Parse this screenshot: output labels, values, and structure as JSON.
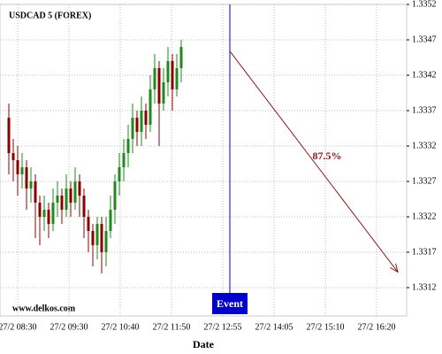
{
  "chart_data": {
    "type": "candlestick",
    "title": "USDCAD 5 (FOREX)",
    "watermark": "www.delkos.com",
    "xlabel": "Date",
    "xtick_labels": [
      "27/2 08:30",
      "27/2 09:30",
      "27/2 10:40",
      "27/2 11:50",
      "27/2 12:55",
      "27/2 14:05",
      "27/2 15:10",
      "27/2 16:20"
    ],
    "ylim": [
      1.3308,
      1.3352
    ],
    "yticks": [
      1.3312,
      1.3317,
      1.3322,
      1.3327,
      1.3332,
      1.3337,
      1.3342,
      1.3347,
      1.3352
    ],
    "grid": true,
    "up_color": "#1f8a1f",
    "down_color": "#8b0000",
    "open": [
      1.3336,
      1.3331,
      1.333,
      1.3328,
      1.3329,
      1.3326,
      1.3327,
      1.3324,
      1.3322,
      1.3323,
      1.3321,
      1.3324,
      1.3325,
      1.3323,
      1.3326,
      1.3324,
      1.3327,
      1.3325,
      1.3322,
      1.332,
      1.3318,
      1.3321,
      1.3317,
      1.332,
      1.3323,
      1.3327,
      1.3329,
      1.3331,
      1.3333,
      1.3336,
      1.3334,
      1.3337,
      1.3335,
      1.334,
      1.3343,
      1.3338,
      1.3341,
      1.3344,
      1.334,
      1.3343
    ],
    "high": [
      1.3338,
      1.3333,
      1.3332,
      1.3331,
      1.333,
      1.3329,
      1.3328,
      1.3325,
      1.3325,
      1.3324,
      1.3326,
      1.3327,
      1.3326,
      1.3328,
      1.3327,
      1.3329,
      1.3328,
      1.3326,
      1.3323,
      1.3321,
      1.3322,
      1.3322,
      1.3322,
      1.3325,
      1.3328,
      1.3331,
      1.3333,
      1.3335,
      1.3338,
      1.3337,
      1.3339,
      1.3338,
      1.3342,
      1.3345,
      1.3344,
      1.3343,
      1.3346,
      1.3345,
      1.3345,
      1.3347
    ],
    "low": [
      1.3328,
      1.3327,
      1.3325,
      1.3326,
      1.3323,
      1.3324,
      1.3319,
      1.3318,
      1.332,
      1.3319,
      1.332,
      1.3322,
      1.3321,
      1.3322,
      1.3322,
      1.3323,
      1.3322,
      1.3319,
      1.3317,
      1.3315,
      1.3316,
      1.3314,
      1.3315,
      1.3319,
      1.3321,
      1.3325,
      1.3327,
      1.3329,
      1.3331,
      1.3332,
      1.3332,
      1.3333,
      1.3334,
      1.3338,
      1.3332,
      1.3337,
      1.3339,
      1.3337,
      1.3339,
      1.3341
    ],
    "close": [
      1.3331,
      1.333,
      1.3328,
      1.3329,
      1.3326,
      1.3327,
      1.3324,
      1.3322,
      1.3323,
      1.3321,
      1.3324,
      1.3325,
      1.3323,
      1.3326,
      1.3324,
      1.3327,
      1.3325,
      1.3322,
      1.332,
      1.3318,
      1.3321,
      1.3317,
      1.332,
      1.3323,
      1.3327,
      1.3329,
      1.3331,
      1.3333,
      1.3336,
      1.3334,
      1.3337,
      1.3335,
      1.334,
      1.3343,
      1.3338,
      1.3341,
      1.3344,
      1.334,
      1.3343,
      1.3346
    ],
    "event_label": "Event",
    "event_color": "#0000cc",
    "forecast": {
      "label": "87.5%",
      "start": 1.33454,
      "end": 1.33142,
      "color": "#8b1a1a"
    }
  }
}
